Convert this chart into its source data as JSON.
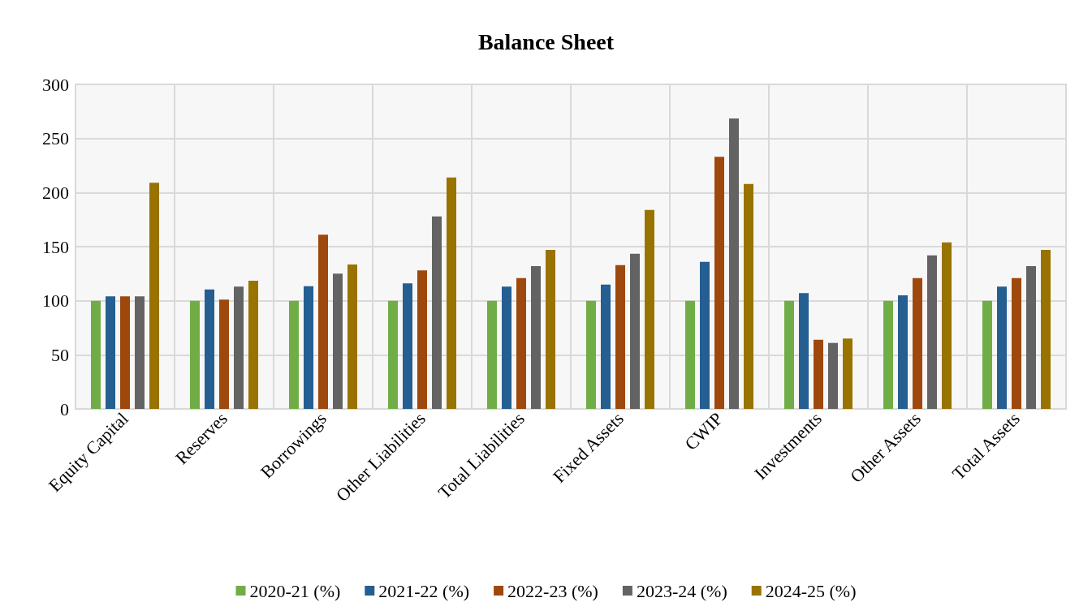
{
  "chart_data": {
    "type": "bar",
    "title": "Balance Sheet",
    "categories": [
      "Equity Capital",
      "Reserves",
      "Borrowings",
      "Other Liabilities",
      "Total Liabilities",
      "Fixed Assets",
      "CWIP",
      "Investments",
      "Other Assets",
      "Total Assets"
    ],
    "series": [
      {
        "name": "2020-21 (%)",
        "color": "#70ad47",
        "values": [
          100,
          100,
          100,
          100,
          100,
          100,
          100,
          100,
          100,
          100
        ]
      },
      {
        "name": "2021-22 (%)",
        "color": "#255e91",
        "values": [
          104,
          110.5,
          113.5,
          116,
          113,
          115,
          136,
          107,
          105,
          113
        ]
      },
      {
        "name": "2022-23 (%)",
        "color": "#9e480e",
        "values": [
          104,
          101,
          161,
          128,
          121,
          133,
          233,
          64,
          121,
          121
        ]
      },
      {
        "name": "2023-24 (%)",
        "color": "#636363",
        "values": [
          104,
          113,
          125,
          178,
          132,
          143.5,
          268.5,
          61,
          142,
          132
        ]
      },
      {
        "name": "2024-25 (%)",
        "color": "#997300",
        "values": [
          209,
          118.5,
          133.5,
          214,
          147,
          184,
          208,
          65,
          154,
          147
        ]
      }
    ],
    "ylim": [
      0,
      300
    ],
    "yticks": [
      0,
      50,
      100,
      150,
      200,
      250,
      300
    ],
    "grid": true,
    "legend": "bottom"
  }
}
